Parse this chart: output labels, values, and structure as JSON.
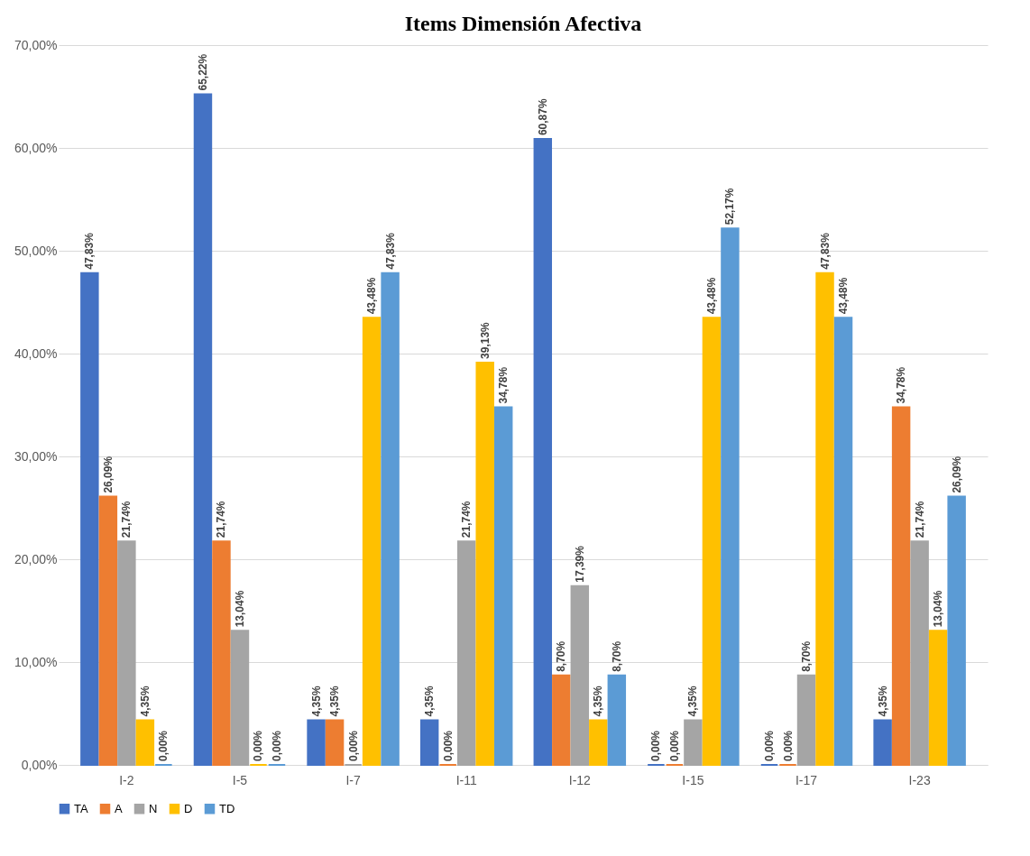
{
  "chart_data": {
    "type": "bar",
    "title": "Items Dimensión Afectiva",
    "categories": [
      "I-2",
      "I-5",
      "I-7",
      "I-11",
      "I-12",
      "I-15",
      "I-17",
      "I-23"
    ],
    "series": [
      {
        "name": "TA",
        "color": "#4472c4",
        "values": [
          47.83,
          65.22,
          4.35,
          4.35,
          60.87,
          0.0,
          0.0,
          4.35
        ],
        "value_labels": [
          "47,83%",
          "65,22%",
          "4,35%",
          "4,35%",
          "60,87%",
          "0,00%",
          "0,00%",
          "4,35%"
        ]
      },
      {
        "name": "A",
        "color": "#ed7d31",
        "values": [
          26.09,
          21.74,
          4.35,
          0.0,
          8.7,
          0.0,
          0.0,
          34.78
        ],
        "value_labels": [
          "26,09%",
          "21,74%",
          "4,35%",
          "0,00%",
          "8,70%",
          "0,00%",
          "0,00%",
          "34,78%"
        ]
      },
      {
        "name": "N",
        "color": "#a5a5a5",
        "values": [
          21.74,
          13.04,
          0.0,
          21.74,
          17.39,
          4.35,
          8.7,
          21.74
        ],
        "value_labels": [
          "21,74%",
          "13,04%",
          "0,00%",
          "21,74%",
          "17,39%",
          "4,35%",
          "8,70%",
          "21,74%"
        ]
      },
      {
        "name": "D",
        "color": "#ffc000",
        "values": [
          4.35,
          0.0,
          43.48,
          39.13,
          4.35,
          43.48,
          47.83,
          13.04
        ],
        "value_labels": [
          "4,35%",
          "0,00%",
          "43,48%",
          "39,13%",
          "4,35%",
          "43,48%",
          "47,83%",
          "13,04%"
        ]
      },
      {
        "name": "TD",
        "color": "#5b9bd5",
        "values": [
          0.0,
          0.0,
          47.83,
          34.78,
          8.7,
          52.17,
          43.48,
          26.09
        ],
        "value_labels": [
          "0,00%",
          "0,00%",
          "47,83%",
          "34,78%",
          "8,70%",
          "52,17%",
          "43,48%",
          "26,09%"
        ]
      }
    ],
    "ylim": [
      0,
      70
    ],
    "yticks": [
      {
        "value": 0,
        "label": "0,00%"
      },
      {
        "value": 10,
        "label": "10,00%"
      },
      {
        "value": 20,
        "label": "20,00%"
      },
      {
        "value": 30,
        "label": "30,00%"
      },
      {
        "value": 40,
        "label": "40,00%"
      },
      {
        "value": 50,
        "label": "50,00%"
      },
      {
        "value": 60,
        "label": "60,00%"
      },
      {
        "value": 70,
        "label": "70,00%"
      }
    ],
    "grid": "y",
    "legend": "bottom"
  }
}
